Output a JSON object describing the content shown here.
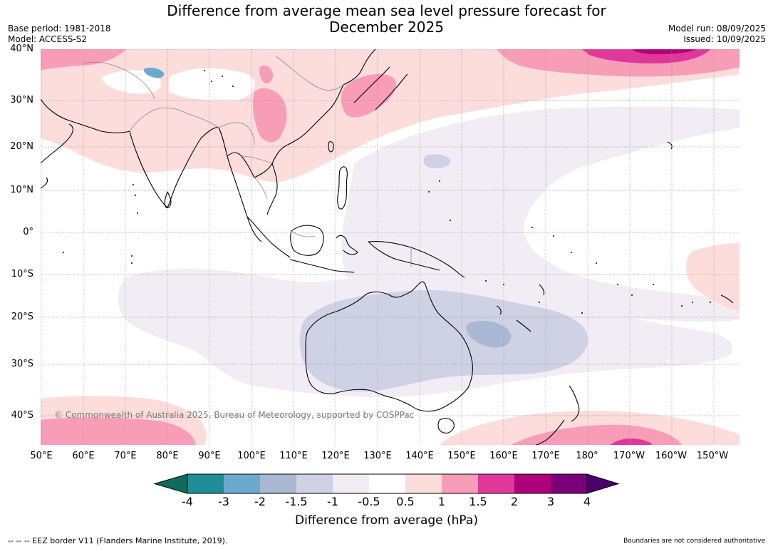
{
  "title_line1": "Difference from average mean sea level pressure forecast for",
  "title_line2": "December 2025",
  "base_period": "Base period: 1981-2018",
  "model": "Model: ACCESS-S2",
  "model_run": "Model run: 08/09/2025",
  "issued": "Issued: 10/09/2025",
  "copyright": "© Commonwealth of Australia 2025, Bureau of Meteorology, supported by COSPPac",
  "eez_note": "--  --  -- EEZ border V11 (Flanders Marine Institute, 2019).",
  "boundary_note": "Boundaries are not considered authoritative",
  "lat_labels": [
    "40°N",
    "30°N",
    "20°N",
    "10°N",
    "0°",
    "10°S",
    "20°S",
    "30°S",
    "40°S"
  ],
  "lon_labels": [
    "50°E",
    "60°E",
    "70°E",
    "80°E",
    "90°E",
    "100°E",
    "110°E",
    "120°E",
    "130°E",
    "140°E",
    "150°E",
    "160°E",
    "170°E",
    "180°",
    "170°W",
    "160°W",
    "150°W"
  ],
  "colorbar": {
    "label": "Difference from average (hPa)",
    "ticks": [
      "-4",
      "-3",
      "-2",
      "-1.5",
      "-1",
      "-0.5",
      "0.5",
      "1",
      "1.5",
      "2",
      "3",
      "4"
    ],
    "colors": {
      "below_-4": "#0e6b5e",
      "-4_-3": "#1f8e97",
      "-3_-2": "#6aaad0",
      "-2_-1.5": "#a9b8d3",
      "-1.5_-1": "#cfd1e4",
      "-1_-0.5": "#f2ecf5",
      "-0.5_0.5": "#ffffff",
      "0.5_1": "#fddcdc",
      "1_1.5": "#f79db8",
      "1.5_2": "#e0379a",
      "2_3": "#b00079",
      "3_4": "#7b0078",
      "above_4": "#4b006b"
    }
  }
}
